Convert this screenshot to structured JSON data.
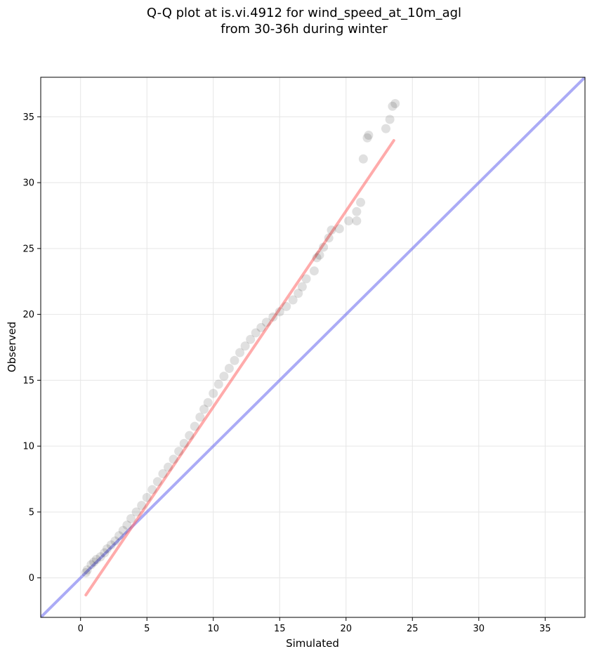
{
  "chart_data": {
    "type": "scatter",
    "title_line1": "Q-Q plot at is.vi.4912 for wind_speed_at_10m_agl",
    "title_line2": "from 30-36h during winter",
    "xlabel": "Simulated",
    "ylabel": "Observed",
    "xlim": [
      -3,
      38
    ],
    "ylim": [
      -3,
      38
    ],
    "xticks": [
      0,
      5,
      10,
      15,
      20,
      25,
      30,
      35
    ],
    "yticks": [
      0,
      5,
      10,
      15,
      20,
      25,
      30,
      35
    ],
    "grid": true,
    "colors": {
      "points": "#000000",
      "fit_line": "#ff6666",
      "identity_line": "#6666ee"
    },
    "identity_line": {
      "x": [
        -3,
        38
      ],
      "y": [
        -3,
        38
      ]
    },
    "fit_line": {
      "x": [
        0.4,
        23.6
      ],
      "y": [
        -1.3,
        33.2
      ]
    },
    "quantiles": {
      "x": [
        0.4,
        0.5,
        0.8,
        1.0,
        1.2,
        1.5,
        1.8,
        2.0,
        2.3,
        2.6,
        2.9,
        3.2,
        3.5,
        3.8,
        4.2,
        4.6,
        5.0,
        5.4,
        5.8,
        6.2,
        6.6,
        7.0,
        7.4,
        7.8,
        8.2,
        8.6,
        9.0,
        9.3,
        9.6,
        10.0,
        10.4,
        10.8,
        11.2,
        11.6,
        12.0,
        12.4,
        12.8,
        13.2,
        13.6,
        14.0,
        14.5,
        15.0,
        15.5,
        16.0,
        16.4,
        16.7,
        17.0,
        17.6,
        17.8,
        18.0,
        18.3,
        18.7,
        18.9,
        19.5,
        20.2,
        20.8,
        20.8,
        21.1,
        21.3,
        21.6,
        21.7,
        23.0,
        23.3,
        23.5,
        23.7
      ],
      "y": [
        0.4,
        0.6,
        1.0,
        1.2,
        1.4,
        1.6,
        1.9,
        2.2,
        2.5,
        2.8,
        3.2,
        3.6,
        4.0,
        4.5,
        5.0,
        5.5,
        6.1,
        6.7,
        7.3,
        7.9,
        8.4,
        9.0,
        9.6,
        10.2,
        10.8,
        11.5,
        12.2,
        12.8,
        13.3,
        14.0,
        14.7,
        15.3,
        15.9,
        16.5,
        17.1,
        17.6,
        18.1,
        18.6,
        19.0,
        19.4,
        19.8,
        20.2,
        20.6,
        21.1,
        21.6,
        22.1,
        22.7,
        23.3,
        24.3,
        24.5,
        25.1,
        25.8,
        26.4,
        26.5,
        27.1,
        27.1,
        27.8,
        28.5,
        31.8,
        33.4,
        33.6,
        34.1,
        34.8,
        35.8,
        36.0
      ]
    }
  }
}
